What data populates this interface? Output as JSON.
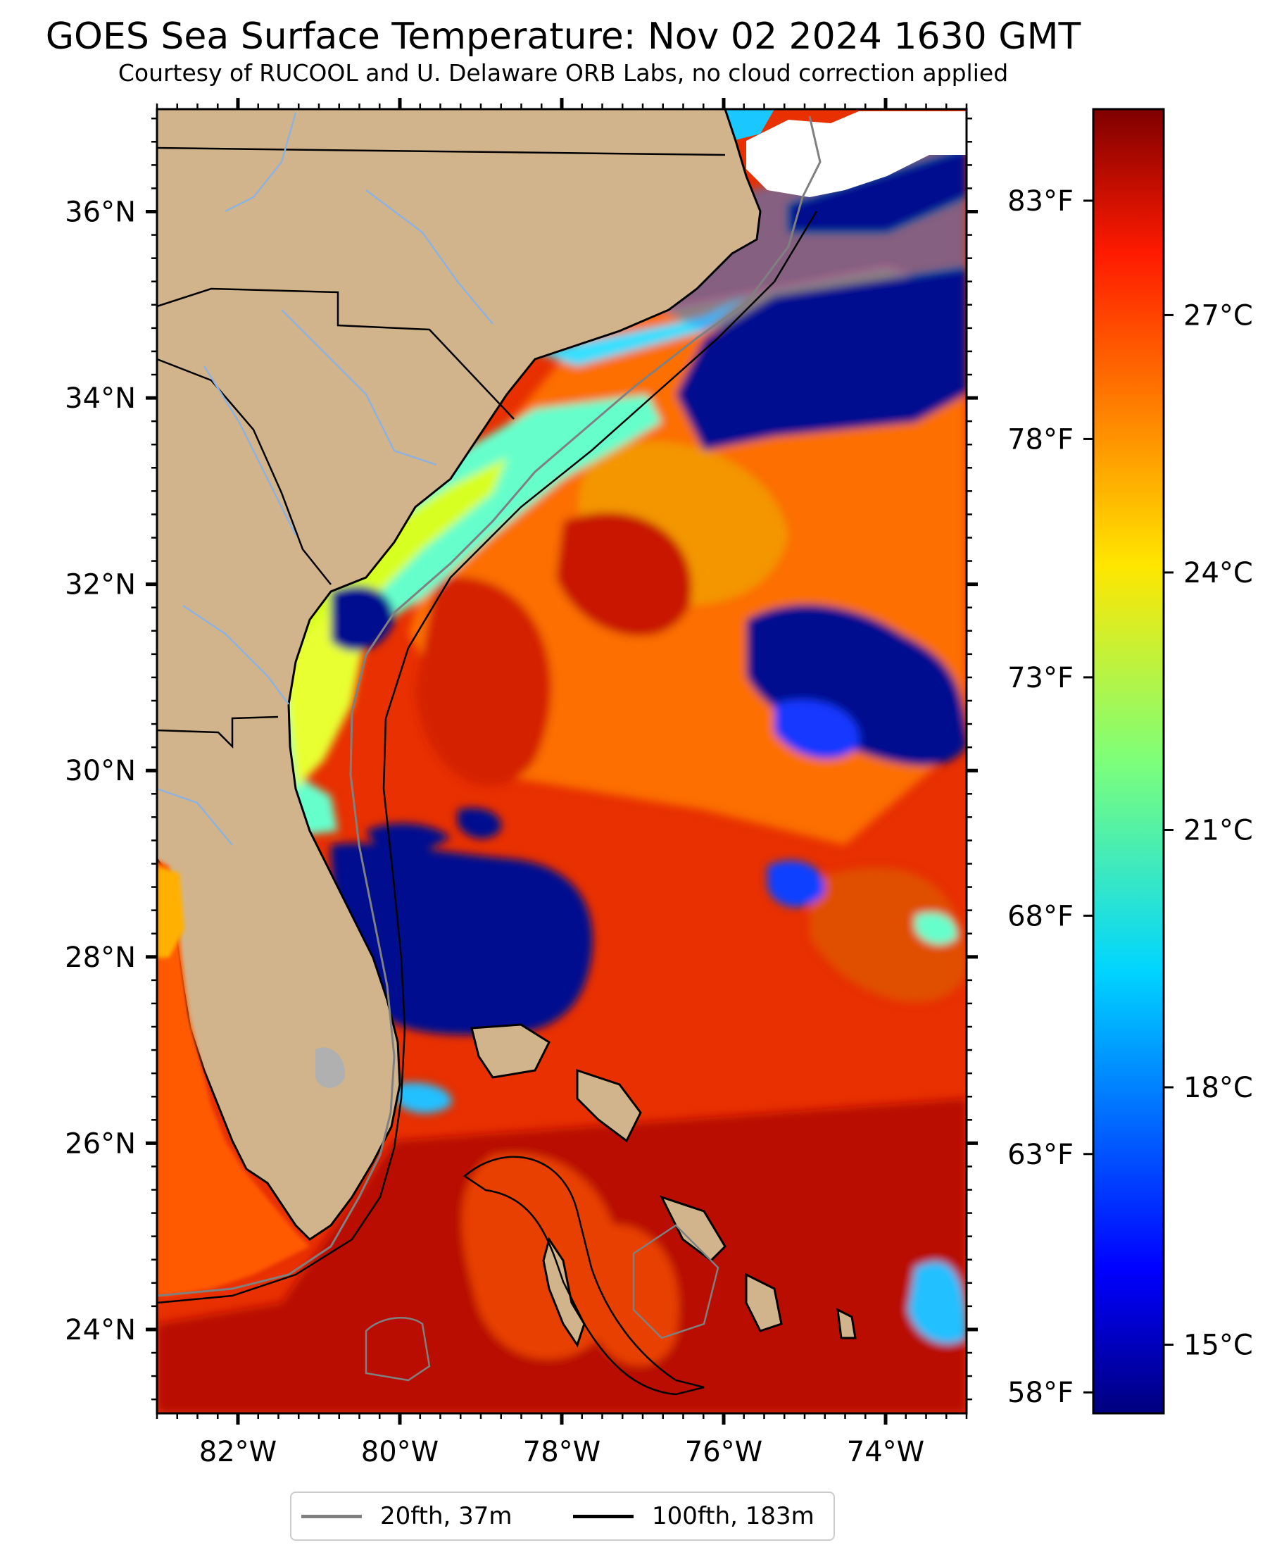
{
  "title": "GOES Sea Surface Temperature: Nov 02 2024 1630 GMT",
  "subtitle": "Courtesy of RUCOOL and U. Delaware ORB Labs, no cloud correction applied",
  "map": {
    "extent": {
      "lon_min": -83,
      "lon_max": -73,
      "lat_min": 23.1,
      "lat_max": 37.1
    },
    "lat_ticks": [
      {
        "value": 36,
        "label": "36°N"
      },
      {
        "value": 34,
        "label": "34°N"
      },
      {
        "value": 32,
        "label": "32°N"
      },
      {
        "value": 30,
        "label": "30°N"
      },
      {
        "value": 28,
        "label": "28°N"
      },
      {
        "value": 26,
        "label": "26°N"
      },
      {
        "value": 24,
        "label": "24°N"
      }
    ],
    "lon_ticks": [
      {
        "value": -82,
        "label": "82°W"
      },
      {
        "value": -80,
        "label": "80°W"
      },
      {
        "value": -78,
        "label": "78°W"
      },
      {
        "value": -76,
        "label": "76°W"
      },
      {
        "value": -74,
        "label": "74°W"
      }
    ],
    "colors": {
      "land": "#d2b48c",
      "ocean_warm": "#e83000",
      "ocean_hot": "#c41a00",
      "cold_water": "#000c8f",
      "cloud_gap": "#ffffff",
      "coastline": "#000000",
      "rivers": "#8fb2dd",
      "lake": "#b0b0b0"
    }
  },
  "colorbar": {
    "celsius_ticks": [
      {
        "value": 27,
        "label": "27°C"
      },
      {
        "value": 24,
        "label": "24°C"
      },
      {
        "value": 21,
        "label": "21°C"
      },
      {
        "value": 18,
        "label": "18°C"
      },
      {
        "value": 15,
        "label": "15°C"
      }
    ],
    "fahrenheit_ticks": [
      {
        "value": 83,
        "label": "83°F"
      },
      {
        "value": 78,
        "label": "78°F"
      },
      {
        "value": 73,
        "label": "73°F"
      },
      {
        "value": 68,
        "label": "68°F"
      },
      {
        "value": 63,
        "label": "63°F"
      },
      {
        "value": 58,
        "label": "58°F"
      }
    ],
    "range_c": [
      14.2,
      29.4
    ],
    "colormap": "jet"
  },
  "legend": [
    {
      "label": "20fth, 37m",
      "color": "#808080"
    },
    {
      "label": "100fth, 183m",
      "color": "#000000"
    }
  ]
}
